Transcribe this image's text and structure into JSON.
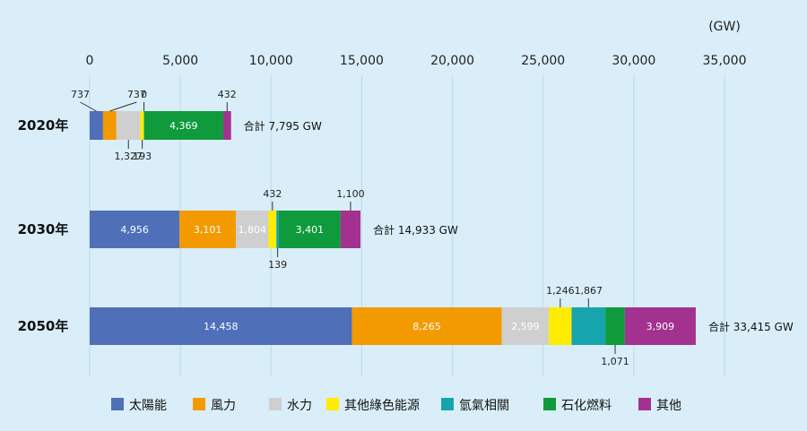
{
  "chart_data": {
    "type": "bar",
    "orientation": "horizontal",
    "stacked": true,
    "unit_label": "(GW)",
    "xlim": [
      0,
      35000
    ],
    "xticks": [
      0,
      5000,
      10000,
      15000,
      20000,
      25000,
      30000,
      35000
    ],
    "xtick_labels": [
      "0",
      "5,000",
      "10,000",
      "15,000",
      "20,000",
      "25,000",
      "30,000",
      "35,000"
    ],
    "grid": true,
    "legend_position": "bottom",
    "categories": [
      "2020年",
      "2030年",
      "2050年"
    ],
    "series": [
      {
        "name": "太陽能",
        "color": "#4f6fb9",
        "values": [
          737,
          4956,
          14458
        ],
        "labels": [
          "737",
          "4,956",
          "14,458"
        ]
      },
      {
        "name": "風力",
        "color": "#f39a00",
        "values": [
          737,
          3101,
          8265
        ],
        "labels": [
          "737",
          "3,101",
          "8,265"
        ]
      },
      {
        "name": "水力",
        "color": "#cfcfcf",
        "values": [
          1327,
          1804,
          2599
        ],
        "labels": [
          "1,327",
          "1,804",
          "2,599"
        ]
      },
      {
        "name": "其他綠色能源",
        "color": "#ffec00",
        "values": [
          193,
          432,
          1246
        ],
        "labels": [
          "193",
          "432",
          "1,246"
        ]
      },
      {
        "name": "氫氣相關",
        "color": "#17a5ad",
        "values": [
          0,
          139,
          1867
        ],
        "labels": [
          "0",
          "139",
          "1,867"
        ]
      },
      {
        "name": "石化燃料",
        "color": "#0f9a3c",
        "values": [
          4369,
          3401,
          1071
        ],
        "labels": [
          "4,369",
          "3,401",
          "1,071"
        ]
      },
      {
        "name": "其他",
        "color": "#a3318f",
        "values": [
          432,
          1100,
          3909
        ],
        "labels": [
          "432",
          "1,100",
          "3,909"
        ]
      }
    ],
    "totals": [
      "合計 7,795 GW",
      "合計 14,933 GW",
      "合計 33,415 GW"
    ]
  }
}
